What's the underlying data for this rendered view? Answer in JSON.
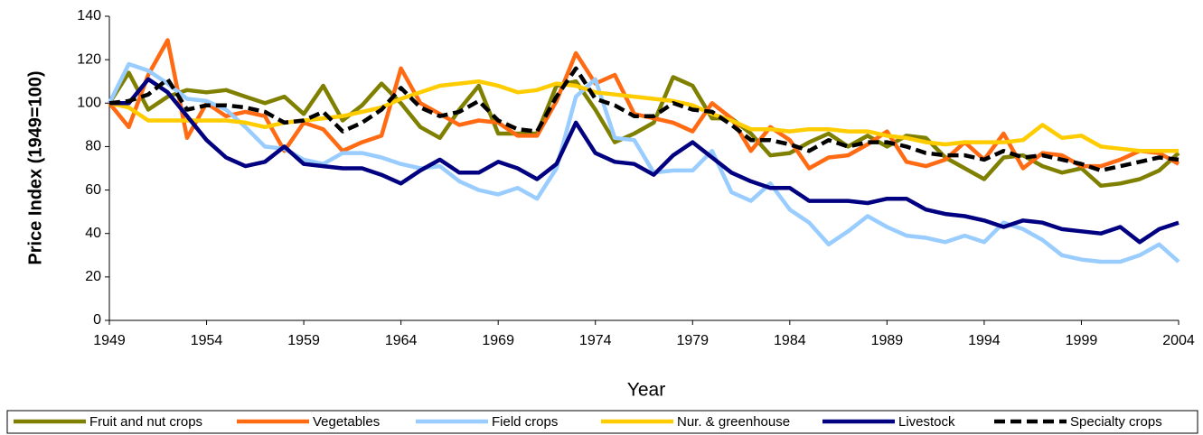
{
  "chart_data": {
    "type": "line",
    "x_label": "Year",
    "y_label": "Price Index (1949=100)",
    "x": [
      1949,
      1950,
      1951,
      1952,
      1953,
      1954,
      1955,
      1956,
      1957,
      1958,
      1959,
      1960,
      1961,
      1962,
      1963,
      1964,
      1965,
      1966,
      1967,
      1968,
      1969,
      1970,
      1971,
      1972,
      1973,
      1974,
      1975,
      1976,
      1977,
      1978,
      1979,
      1980,
      1981,
      1982,
      1983,
      1984,
      1985,
      1986,
      1987,
      1988,
      1989,
      1990,
      1991,
      1992,
      1993,
      1994,
      1995,
      1996,
      1997,
      1998,
      1999,
      2000,
      2001,
      2002,
      2003,
      2004
    ],
    "series": [
      {
        "name": "Fruit and nut crops",
        "color": "#808000",
        "values": [
          100,
          114,
          97,
          103,
          106,
          105,
          106,
          103,
          100,
          103,
          95,
          108,
          92,
          99,
          109,
          100,
          89,
          84,
          97,
          108,
          86,
          86,
          86,
          108,
          110,
          97,
          82,
          86,
          91,
          112,
          108,
          93,
          93,
          86,
          76,
          77,
          82,
          86,
          80,
          85,
          80,
          85,
          84,
          75,
          70,
          65,
          75,
          76,
          71,
          68,
          70,
          62,
          63,
          65,
          69,
          77
        ]
      },
      {
        "name": "Vegetables",
        "color": "#ff6a13",
        "values": [
          100,
          89,
          113,
          129,
          84,
          100,
          94,
          96,
          94,
          78,
          91,
          88,
          78,
          82,
          85,
          116,
          100,
          95,
          90,
          92,
          91,
          85,
          85,
          101,
          123,
          109,
          113,
          95,
          93,
          91,
          87,
          100,
          93,
          78,
          89,
          83,
          70,
          75,
          76,
          81,
          87,
          73,
          71,
          74,
          82,
          74,
          86,
          70,
          77,
          76,
          71,
          71,
          74,
          78,
          77,
          72
        ]
      },
      {
        "name": "Field crops",
        "color": "#99ccff",
        "values": [
          100,
          118,
          115,
          109,
          102,
          101,
          97,
          89,
          80,
          79,
          74,
          72,
          77,
          77,
          75,
          72,
          70,
          71,
          64,
          60,
          58,
          61,
          56,
          70,
          103,
          111,
          84,
          83,
          68,
          69,
          69,
          78,
          59,
          55,
          63,
          51,
          45,
          35,
          41,
          48,
          43,
          39,
          38,
          36,
          39,
          36,
          45,
          42,
          37,
          30,
          28,
          27,
          27,
          30,
          35,
          27
        ]
      },
      {
        "name": "Nur. & greenhouse",
        "color": "#ffcc00",
        "values": [
          100,
          98,
          92,
          92,
          92,
          92,
          92,
          91,
          89,
          91,
          92,
          93,
          94,
          96,
          98,
          102,
          105,
          108,
          109,
          110,
          108,
          105,
          106,
          109,
          108,
          105,
          104,
          103,
          102,
          101,
          99,
          95,
          92,
          88,
          88,
          87,
          88,
          88,
          87,
          87,
          85,
          84,
          82,
          81,
          82,
          82,
          82,
          83,
          90,
          84,
          85,
          80,
          79,
          78,
          78,
          78
        ]
      },
      {
        "name": "Livestock",
        "color": "#000080",
        "values": [
          100,
          100,
          111,
          105,
          94,
          83,
          75,
          71,
          73,
          80,
          72,
          71,
          70,
          70,
          67,
          63,
          69,
          74,
          68,
          68,
          73,
          70,
          65,
          72,
          91,
          77,
          73,
          72,
          67,
          76,
          82,
          75,
          68,
          64,
          61,
          61,
          55,
          55,
          55,
          54,
          56,
          56,
          51,
          49,
          48,
          46,
          43,
          46,
          45,
          42,
          41,
          40,
          43,
          36,
          42,
          45
        ]
      },
      {
        "name": "Specialty crops",
        "color": "#000000",
        "dashed": true,
        "values": [
          100,
          101,
          104,
          111,
          97,
          99,
          99,
          98,
          96,
          91,
          92,
          96,
          87,
          91,
          97,
          107,
          98,
          94,
          96,
          101,
          92,
          88,
          87,
          103,
          116,
          102,
          99,
          94,
          94,
          100,
          97,
          96,
          90,
          83,
          83,
          81,
          78,
          83,
          80,
          82,
          82,
          80,
          77,
          76,
          76,
          74,
          78,
          75,
          76,
          74,
          72,
          69,
          71,
          73,
          75,
          74
        ]
      }
    ],
    "xlim": [
      1949,
      2004
    ],
    "xticks": [
      1949,
      1954,
      1959,
      1964,
      1969,
      1974,
      1979,
      1984,
      1989,
      1994,
      1999,
      2004
    ],
    "ylim": [
      0,
      140
    ],
    "yticks": [
      0,
      20,
      40,
      60,
      80,
      100,
      120,
      140
    ],
    "grid": false,
    "legend": "bottom"
  }
}
